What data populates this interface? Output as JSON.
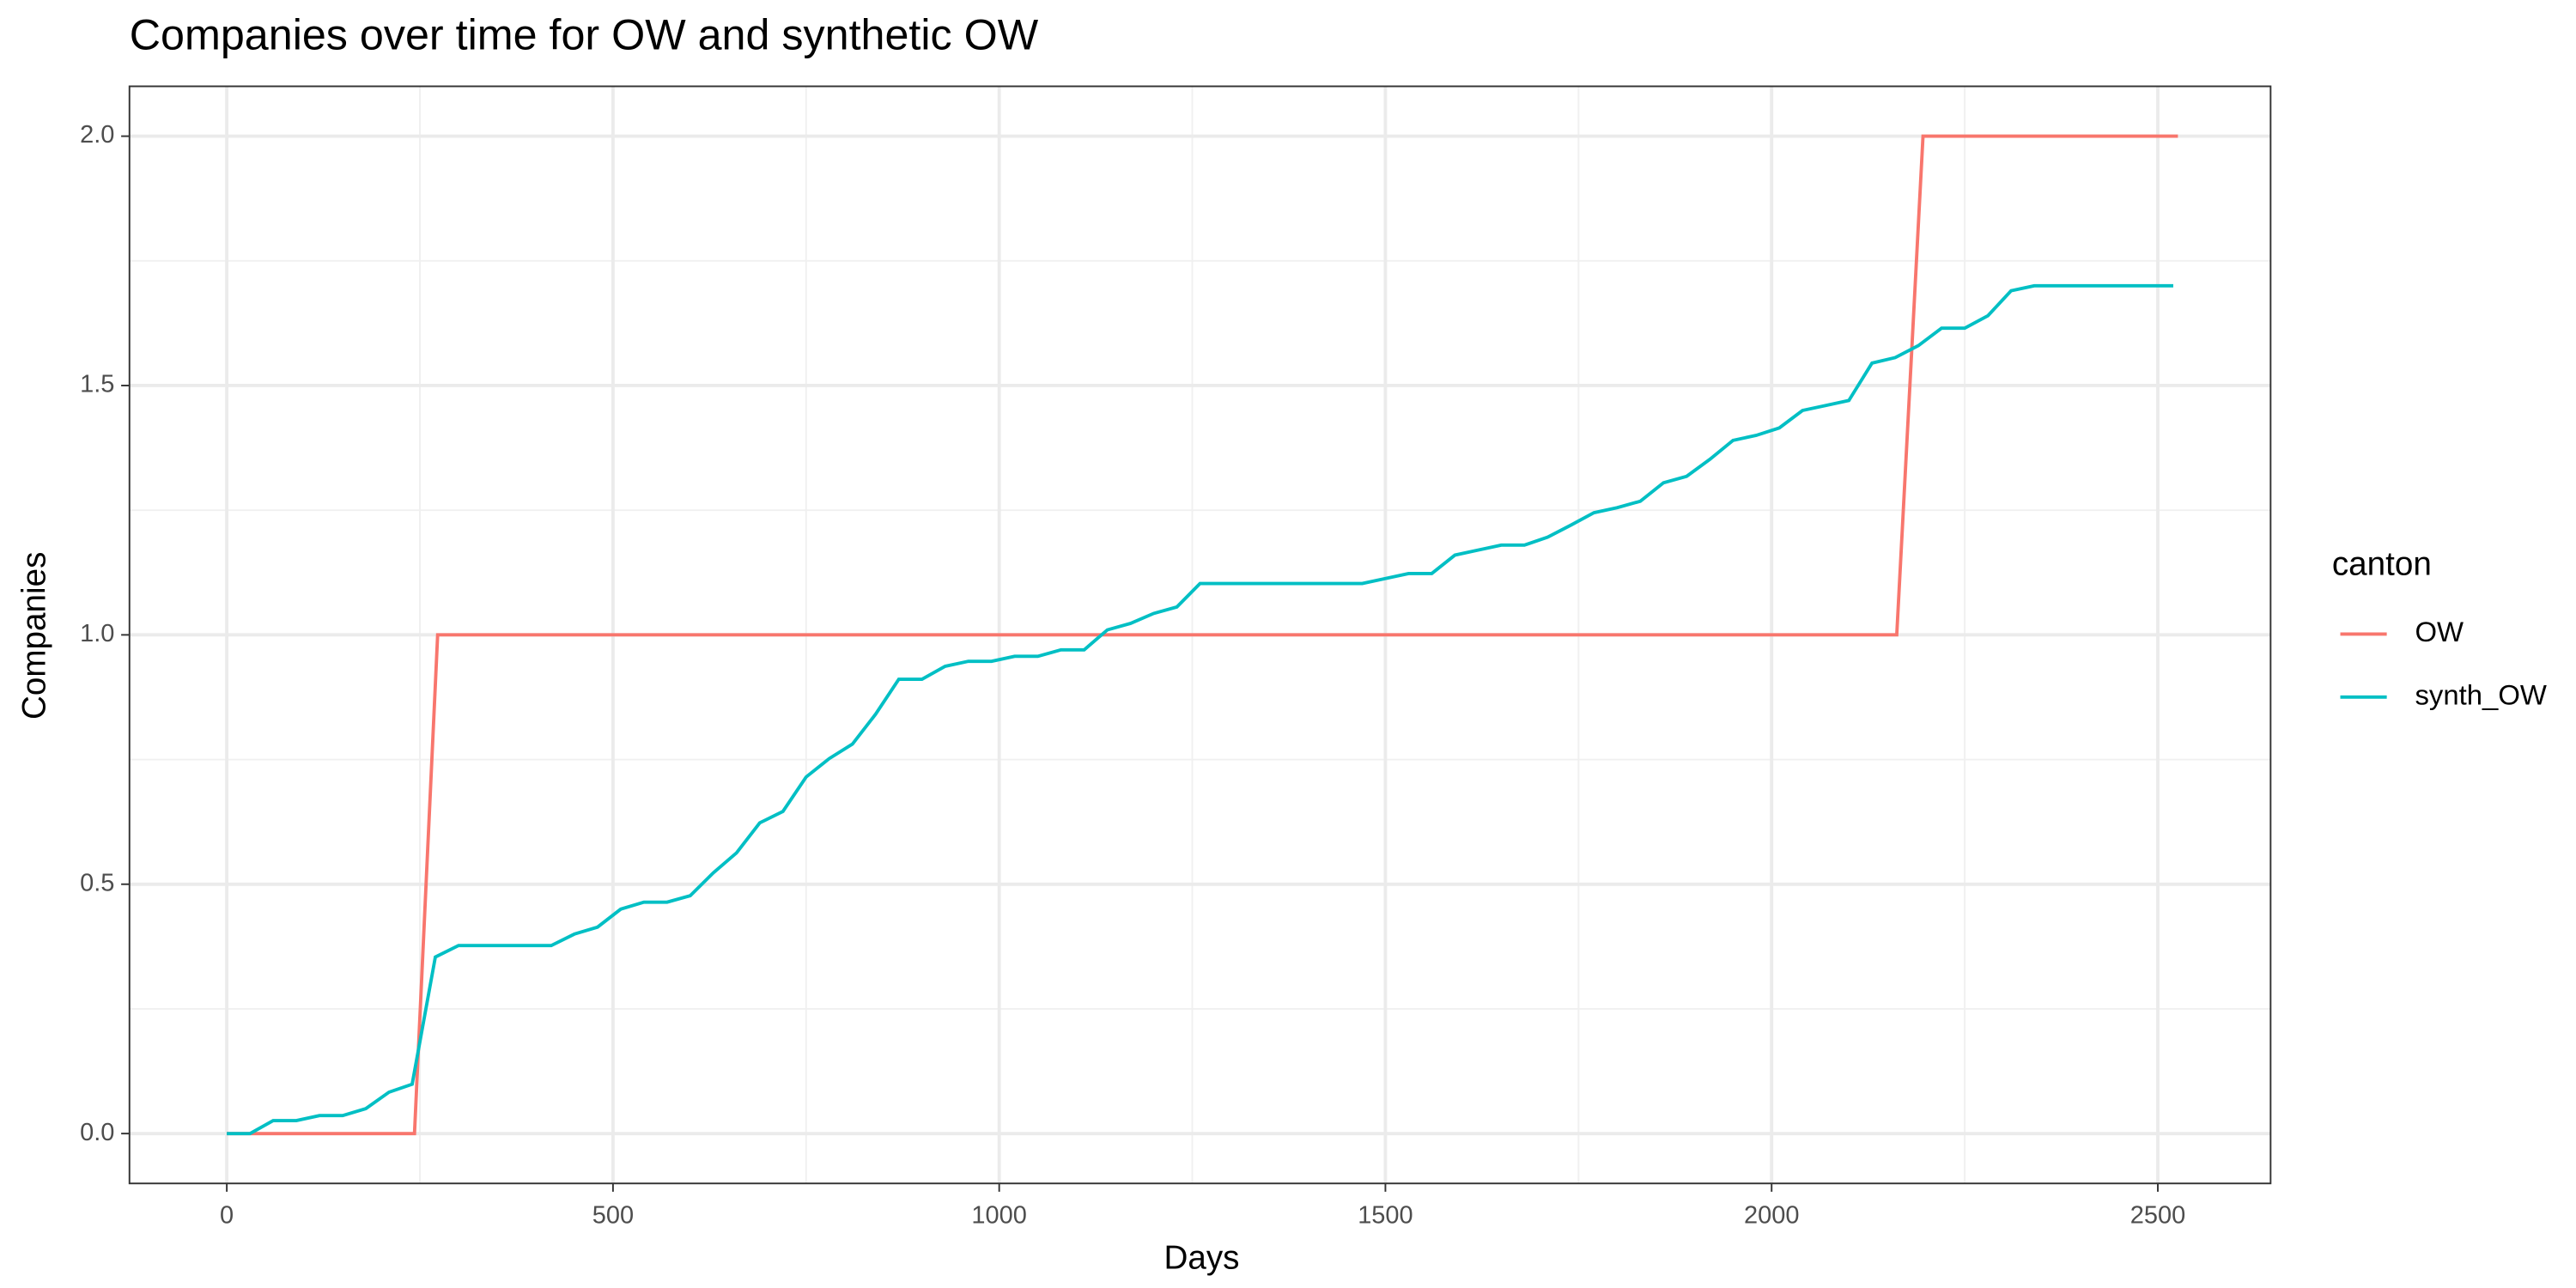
{
  "chart_data": {
    "type": "line",
    "title": "Companies over time for OW and synthetic OW",
    "x_label": "Days",
    "y_label": "Companies",
    "legend_title": "canton",
    "legend_position": "right",
    "grid": true,
    "xlim": [
      -126,
      2646
    ],
    "ylim": [
      -0.1,
      2.1
    ],
    "xticks": [
      0,
      500,
      1000,
      1500,
      2000,
      2500
    ],
    "yticks": [
      {
        "value": 0,
        "label": "0.0"
      },
      {
        "value": 0.5,
        "label": "0.5"
      },
      {
        "value": 1,
        "label": "1.0"
      },
      {
        "value": 1.5,
        "label": "1.5"
      },
      {
        "value": 2,
        "label": "2.0"
      }
    ],
    "x_minor_ticks": [
      250,
      750,
      1250,
      1750,
      2250
    ],
    "y_minor_ticks": [
      0.25,
      0.75,
      1.25,
      1.75
    ],
    "series": [
      {
        "name": "OW",
        "color": "#f8766d",
        "x": [
          0,
          243,
          273,
          2162,
          2196,
          2526
        ],
        "values": [
          0,
          0,
          1,
          1,
          2,
          2
        ]
      },
      {
        "name": "synth_OW",
        "color": "#00bfc4",
        "x": [
          0,
          30,
          60,
          90,
          120,
          150,
          180,
          210,
          240,
          270,
          300,
          330,
          360,
          390,
          420,
          450,
          480,
          510,
          540,
          570,
          600,
          630,
          660,
          690,
          720,
          750,
          780,
          810,
          840,
          870,
          900,
          930,
          960,
          990,
          1020,
          1050,
          1080,
          1110,
          1140,
          1170,
          1200,
          1230,
          1260,
          1290,
          1320,
          1350,
          1380,
          1410,
          1440,
          1470,
          1500,
          1530,
          1560,
          1590,
          1620,
          1650,
          1680,
          1710,
          1740,
          1770,
          1800,
          1830,
          1860,
          1890,
          1920,
          1950,
          1980,
          2010,
          2040,
          2070,
          2100,
          2130,
          2160,
          2190,
          2220,
          2250,
          2280,
          2310,
          2340,
          2370,
          2400,
          2430,
          2460,
          2490,
          2520
        ],
        "values": [
          0,
          0,
          0.026,
          0.026,
          0.036,
          0.036,
          0.05,
          0.083,
          0.099,
          0.354,
          0.377,
          0.377,
          0.377,
          0.377,
          0.377,
          0.4,
          0.414,
          0.45,
          0.464,
          0.464,
          0.477,
          0.523,
          0.563,
          0.623,
          0.646,
          0.715,
          0.752,
          0.781,
          0.841,
          0.911,
          0.911,
          0.937,
          0.947,
          0.947,
          0.957,
          0.957,
          0.97,
          0.97,
          1.01,
          1.023,
          1.043,
          1.056,
          1.103,
          1.103,
          1.103,
          1.103,
          1.103,
          1.103,
          1.103,
          1.103,
          1.113,
          1.123,
          1.123,
          1.16,
          1.17,
          1.18,
          1.18,
          1.196,
          1.22,
          1.245,
          1.255,
          1.268,
          1.305,
          1.318,
          1.352,
          1.39,
          1.4,
          1.415,
          1.45,
          1.46,
          1.47,
          1.545,
          1.556,
          1.58,
          1.615,
          1.615,
          1.64,
          1.69,
          1.7,
          1.7,
          1.7,
          1.7,
          1.7,
          1.7,
          1.7
        ]
      }
    ]
  }
}
